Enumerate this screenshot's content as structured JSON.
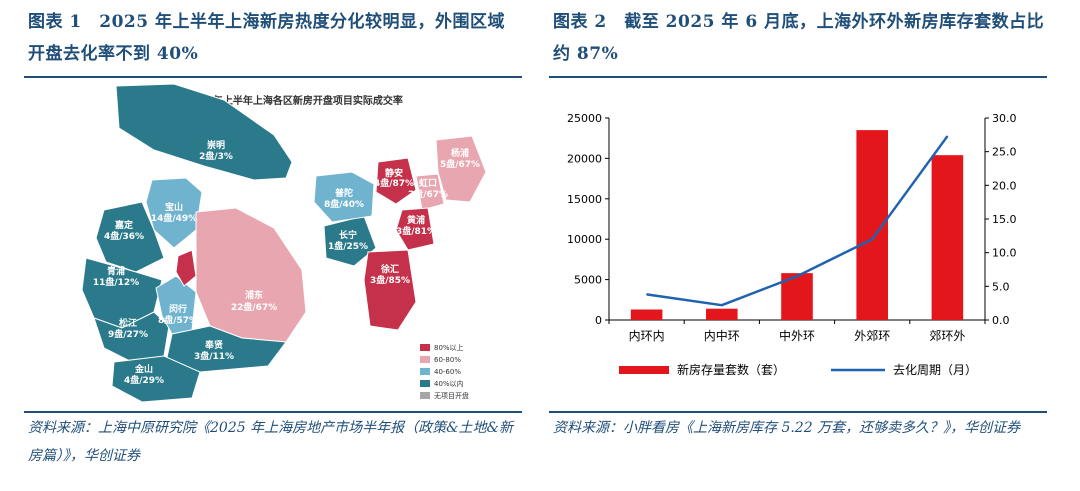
{
  "left": {
    "title": "图表 1　2025 年上半年上海新房热度分化较明显，外围区域开盘去化率不到 40%",
    "source": "资料来源：上海中原研究院《2025 年上海房地产市场半年报（政策&土地&新房篇）》，华创证券",
    "map": {
      "title": "2025年上半年上海各区新房开盘项目实际成交率",
      "colors": {
        "80%以上": "#c5314a",
        "60-80%": "#e8a6b0",
        "40-60%": "#6fb3ce",
        "40%以内": "#2a7a8c",
        "无项目开盘": "#a6a6a6"
      },
      "legend": [
        "80%以上",
        "60-80%",
        "40-60%",
        "40%以内",
        "无项目开盘"
      ],
      "districts": [
        {
          "name": "崇明",
          "value": "2盘/3%",
          "band": "40%以内"
        },
        {
          "name": "宝山",
          "value": "14盘/49%",
          "band": "40-60%"
        },
        {
          "name": "嘉定",
          "value": "4盘/36%",
          "band": "40%以内"
        },
        {
          "name": "青浦",
          "value": "11盘/12%",
          "band": "40%以内"
        },
        {
          "name": "松江",
          "value": "9盘/27%",
          "band": "40%以内"
        },
        {
          "name": "闵行",
          "value": "8盘/57%",
          "band": "40-60%"
        },
        {
          "name": "金山",
          "value": "4盘/29%",
          "band": "40%以内"
        },
        {
          "name": "奉贤",
          "value": "3盘/11%",
          "band": "40%以内"
        },
        {
          "name": "浦东",
          "value": "22盘/67%",
          "band": "60-80%"
        },
        {
          "name": "静安",
          "value": "4盘/87%",
          "band": "80%以上"
        },
        {
          "name": "杨浦",
          "value": "5盘/67%",
          "band": "60-80%"
        },
        {
          "name": "虹口",
          "value": "2盘/67%",
          "band": "60-80%"
        },
        {
          "name": "普陀",
          "value": "8盘/40%",
          "band": "40-60%"
        },
        {
          "name": "黄浦",
          "value": "3盘/81%",
          "band": "80%以上"
        },
        {
          "name": "长宁",
          "value": "1盘/25%",
          "band": "40%以内"
        },
        {
          "name": "徐汇",
          "value": "3盘/85%",
          "band": "80%以上"
        }
      ]
    }
  },
  "right": {
    "title": "图表 2　截至 2025 年 6 月底，上海外环外新房库存套数占比约 87%",
    "source": "资料来源：小胖看房《上海新房库存 5.22 万套，还够卖多久？》，华创证券",
    "chart_data": {
      "type": "bar",
      "categories": [
        "内环内",
        "内中环",
        "中外环",
        "外郊环",
        "郊环外"
      ],
      "series": [
        {
          "name": "新房存量套数（套）",
          "type": "bar",
          "axis": "left",
          "color": "#e3171b",
          "values": [
            1300,
            1400,
            5800,
            23500,
            20400
          ]
        },
        {
          "name": "去化周期（月）",
          "type": "line",
          "axis": "right",
          "color": "#1f63b0",
          "values": [
            3.8,
            2.2,
            6.5,
            12.0,
            27.3
          ]
        }
      ],
      "ylim_left": [
        0,
        25000
      ],
      "yticks_left": [
        "0",
        "5000",
        "10000",
        "15000",
        "20000",
        "25000"
      ],
      "ylim_right": [
        0,
        30
      ],
      "yticks_right": [
        "0.0",
        "5.0",
        "10.0",
        "15.0",
        "20.0",
        "25.0",
        "30.0"
      ],
      "legend": "bottom"
    }
  }
}
